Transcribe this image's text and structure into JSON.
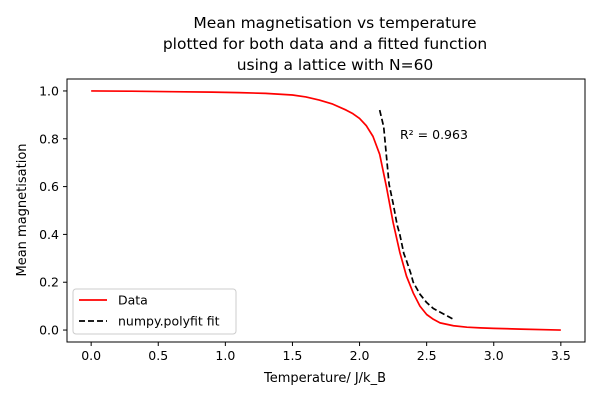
{
  "chart_data": {
    "type": "line",
    "title_lines": [
      "Mean magnetisation vs temperature",
      "plotted for both data and a fitted function",
      "using a lattice with N=60"
    ],
    "xlabel": "Temperature/ J/k_B",
    "ylabel": "Mean magnetisation",
    "xlim": [
      -0.18,
      3.68
    ],
    "ylim": [
      -0.05,
      1.05
    ],
    "x_ticks": [
      0.0,
      0.5,
      1.0,
      1.5,
      2.0,
      2.5,
      3.0,
      3.5
    ],
    "x_tick_labels": [
      "0.0",
      "0.5",
      "1.0",
      "1.5",
      "2.0",
      "2.5",
      "3.0",
      "3.5"
    ],
    "y_ticks": [
      0.0,
      0.2,
      0.4,
      0.6,
      0.8,
      1.0
    ],
    "y_tick_labels": [
      "0.0",
      "0.2",
      "0.4",
      "0.6",
      "0.8",
      "1.0"
    ],
    "grid": false,
    "legend_position": "lower-left",
    "series": [
      {
        "name": "Data",
        "color": "#ff0000",
        "style": "solid",
        "x": [
          0.0,
          0.3,
          0.6,
          0.9,
          1.1,
          1.3,
          1.5,
          1.6,
          1.7,
          1.8,
          1.9,
          1.95,
          2.0,
          2.05,
          2.1,
          2.15,
          2.2,
          2.25,
          2.3,
          2.35,
          2.4,
          2.45,
          2.5,
          2.55,
          2.6,
          2.7,
          2.8,
          2.9,
          3.0,
          3.2,
          3.5
        ],
        "y": [
          1.0,
          0.999,
          0.997,
          0.995,
          0.993,
          0.99,
          0.983,
          0.975,
          0.962,
          0.945,
          0.92,
          0.905,
          0.885,
          0.855,
          0.81,
          0.735,
          0.6,
          0.45,
          0.325,
          0.225,
          0.155,
          0.1,
          0.065,
          0.045,
          0.03,
          0.018,
          0.012,
          0.009,
          0.007,
          0.004,
          0.0
        ]
      },
      {
        "name": "numpy.polyfit fit",
        "color": "#000000",
        "style": "dashed",
        "x": [
          2.15,
          2.18,
          2.2,
          2.22,
          2.25,
          2.28,
          2.3,
          2.33,
          2.35,
          2.38,
          2.4,
          2.45,
          2.5,
          2.55,
          2.6,
          2.65,
          2.7
        ],
        "y": [
          0.92,
          0.85,
          0.73,
          0.61,
          0.53,
          0.44,
          0.4,
          0.32,
          0.29,
          0.24,
          0.2,
          0.15,
          0.115,
          0.09,
          0.075,
          0.06,
          0.045
        ]
      }
    ],
    "annotations": [
      {
        "text": "R² = 0.963",
        "x": 2.3,
        "y": 0.8
      }
    ]
  }
}
